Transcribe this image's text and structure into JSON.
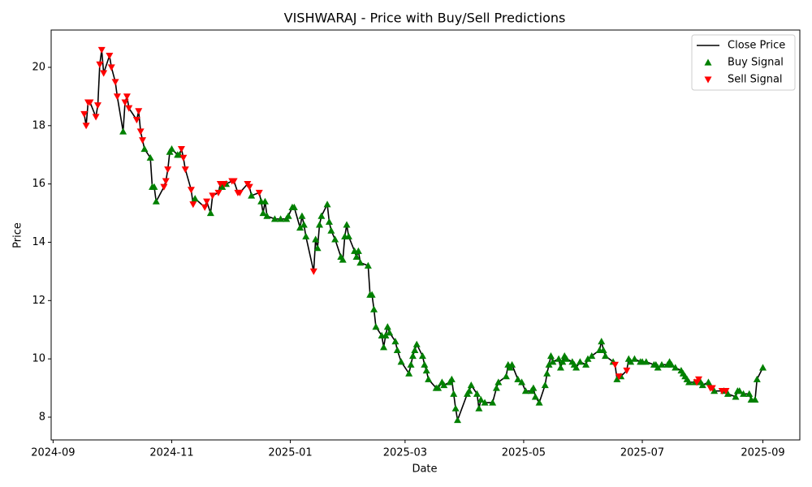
{
  "chart_data": {
    "type": "line",
    "title": "VISHWARAJ - Price with Buy/Sell Predictions",
    "x_label": "Date",
    "y_label": "Price",
    "x": [
      "2024-09-17",
      "2024-09-18",
      "2024-09-19",
      "2024-09-20",
      "2024-09-23",
      "2024-09-24",
      "2024-09-25",
      "2024-09-26",
      "2024-09-27",
      "2024-09-30",
      "2024-10-01",
      "2024-10-03",
      "2024-10-04",
      "2024-10-07",
      "2024-10-08",
      "2024-10-09",
      "2024-10-10",
      "2024-10-14",
      "2024-10-15",
      "2024-10-16",
      "2024-10-17",
      "2024-10-18",
      "2024-10-21",
      "2024-10-22",
      "2024-10-23",
      "2024-10-24",
      "2024-10-28",
      "2024-10-29",
      "2024-10-30",
      "2024-10-31",
      "2024-11-01",
      "2024-11-04",
      "2024-11-05",
      "2024-11-06",
      "2024-11-07",
      "2024-11-08",
      "2024-11-11",
      "2024-11-12",
      "2024-11-13",
      "2024-11-18",
      "2024-11-19",
      "2024-11-21",
      "2024-11-22",
      "2024-11-25",
      "2024-11-26",
      "2024-11-27",
      "2024-11-28",
      "2024-11-29",
      "2024-12-02",
      "2024-12-03",
      "2024-12-05",
      "2024-12-06",
      "2024-12-10",
      "2024-12-11",
      "2024-12-12",
      "2024-12-16",
      "2024-12-17",
      "2024-12-18",
      "2024-12-19",
      "2024-12-20",
      "2024-12-24",
      "2024-12-27",
      "2024-12-30",
      "2024-12-31",
      "2025-01-02",
      "2025-01-03",
      "2025-01-06",
      "2025-01-07",
      "2025-01-08",
      "2025-01-09",
      "2025-01-13",
      "2025-01-14",
      "2025-01-15",
      "2025-01-16",
      "2025-01-17",
      "2025-01-20",
      "2025-01-21",
      "2025-01-22",
      "2025-01-24",
      "2025-01-27",
      "2025-01-28",
      "2025-01-29",
      "2025-01-30",
      "2025-01-31",
      "2025-02-03",
      "2025-02-04",
      "2025-02-05",
      "2025-02-06",
      "2025-02-10",
      "2025-02-11",
      "2025-02-12",
      "2025-02-13",
      "2025-02-14",
      "2025-02-17",
      "2025-02-18",
      "2025-02-19",
      "2025-02-20",
      "2025-02-21",
      "2025-02-24",
      "2025-02-25",
      "2025-02-27",
      "2025-03-03",
      "2025-03-04",
      "2025-03-05",
      "2025-03-06",
      "2025-03-07",
      "2025-03-10",
      "2025-03-11",
      "2025-03-12",
      "2025-03-13",
      "2025-03-17",
      "2025-03-18",
      "2025-03-20",
      "2025-03-21",
      "2025-03-24",
      "2025-03-25",
      "2025-03-26",
      "2025-03-27",
      "2025-03-28",
      "2025-04-02",
      "2025-04-03",
      "2025-04-04",
      "2025-04-07",
      "2025-04-08",
      "2025-04-09",
      "2025-04-11",
      "2025-04-15",
      "2025-04-17",
      "2025-04-18",
      "2025-04-22",
      "2025-04-23",
      "2025-04-24",
      "2025-04-25",
      "2025-04-28",
      "2025-04-30",
      "2025-05-02",
      "2025-05-05",
      "2025-05-06",
      "2025-05-07",
      "2025-05-09",
      "2025-05-12",
      "2025-05-13",
      "2025-05-14",
      "2025-05-15",
      "2025-05-16",
      "2025-05-19",
      "2025-05-20",
      "2025-05-21",
      "2025-05-22",
      "2025-05-23",
      "2025-05-26",
      "2025-05-27",
      "2025-05-28",
      "2025-05-30",
      "2025-06-02",
      "2025-06-03",
      "2025-06-05",
      "2025-06-09",
      "2025-06-10",
      "2025-06-11",
      "2025-06-12",
      "2025-06-16",
      "2025-06-17",
      "2025-06-18",
      "2025-06-19",
      "2025-06-20",
      "2025-06-23",
      "2025-06-24",
      "2025-06-25",
      "2025-06-27",
      "2025-06-30",
      "2025-07-01",
      "2025-07-03",
      "2025-07-07",
      "2025-07-08",
      "2025-07-09",
      "2025-07-11",
      "2025-07-14",
      "2025-07-15",
      "2025-07-16",
      "2025-07-18",
      "2025-07-21",
      "2025-07-22",
      "2025-07-23",
      "2025-07-24",
      "2025-07-25",
      "2025-07-28",
      "2025-07-29",
      "2025-07-30",
      "2025-07-31",
      "2025-08-01",
      "2025-08-04",
      "2025-08-05",
      "2025-08-06",
      "2025-08-07",
      "2025-08-11",
      "2025-08-12",
      "2025-08-13",
      "2025-08-14",
      "2025-08-18",
      "2025-08-19",
      "2025-08-20",
      "2025-08-22",
      "2025-08-25",
      "2025-08-26",
      "2025-08-28",
      "2025-08-29",
      "2025-09-01"
    ],
    "series": [
      {
        "name": "Close Price",
        "color": "#000000",
        "values": [
          18.4,
          18.0,
          18.8,
          18.8,
          18.3,
          18.7,
          20.1,
          20.6,
          19.8,
          20.4,
          20.0,
          19.5,
          19.0,
          17.8,
          18.8,
          19.0,
          18.6,
          18.2,
          18.5,
          17.8,
          17.5,
          17.2,
          16.9,
          15.9,
          15.9,
          15.4,
          15.9,
          16.1,
          16.5,
          17.1,
          17.2,
          17.0,
          17.0,
          17.2,
          16.9,
          16.5,
          15.8,
          15.3,
          15.5,
          15.2,
          15.4,
          15.0,
          15.6,
          15.7,
          16.0,
          15.9,
          16.0,
          16.0,
          16.1,
          16.1,
          15.7,
          15.7,
          16.0,
          15.9,
          15.6,
          15.7,
          15.4,
          15.0,
          15.4,
          14.9,
          14.8,
          14.8,
          14.8,
          14.9,
          15.2,
          15.2,
          14.5,
          14.9,
          14.6,
          14.2,
          13.0,
          14.1,
          13.8,
          14.6,
          14.9,
          15.3,
          14.7,
          14.4,
          14.1,
          13.5,
          13.4,
          14.2,
          14.6,
          14.2,
          13.7,
          13.5,
          13.7,
          13.3,
          13.2,
          12.2,
          12.2,
          11.7,
          11.1,
          10.8,
          10.4,
          10.8,
          11.1,
          10.9,
          10.6,
          10.3,
          9.9,
          9.5,
          9.8,
          10.1,
          10.3,
          10.5,
          10.1,
          9.8,
          9.6,
          9.3,
          9.0,
          9.0,
          9.2,
          9.1,
          9.2,
          9.3,
          8.8,
          8.3,
          7.9,
          8.8,
          8.9,
          9.1,
          8.8,
          8.3,
          8.6,
          8.5,
          8.5,
          9.0,
          9.2,
          9.4,
          9.8,
          9.7,
          9.8,
          9.3,
          9.2,
          8.9,
          8.9,
          9.0,
          8.7,
          8.5,
          9.1,
          9.5,
          9.8,
          10.1,
          9.9,
          10.0,
          9.7,
          9.9,
          10.1,
          10.0,
          9.9,
          9.8,
          9.7,
          9.9,
          9.8,
          10.0,
          10.1,
          10.3,
          10.6,
          10.3,
          10.1,
          9.9,
          9.8,
          9.3,
          9.4,
          9.4,
          9.6,
          10.0,
          9.9,
          10.0,
          9.9,
          9.9,
          9.9,
          9.8,
          9.8,
          9.7,
          9.8,
          9.8,
          9.9,
          9.8,
          9.7,
          9.6,
          9.5,
          9.4,
          9.3,
          9.2,
          9.2,
          9.2,
          9.3,
          9.2,
          9.1,
          9.2,
          9.0,
          9.0,
          8.9,
          8.9,
          8.9,
          8.9,
          8.8,
          8.7,
          8.9,
          8.9,
          8.8,
          8.8,
          8.6,
          8.6,
          9.3,
          9.7
        ]
      },
      {
        "name": "Buy Signal",
        "color": "#008000",
        "marker": "^",
        "values": [
          null,
          null,
          null,
          null,
          null,
          null,
          null,
          null,
          null,
          null,
          null,
          null,
          null,
          17.8,
          null,
          null,
          null,
          null,
          null,
          null,
          null,
          17.2,
          16.9,
          15.9,
          15.9,
          15.4,
          null,
          null,
          null,
          17.1,
          17.2,
          17.0,
          17.0,
          null,
          null,
          null,
          null,
          null,
          15.5,
          null,
          null,
          15.0,
          null,
          null,
          null,
          15.9,
          null,
          16.0,
          null,
          null,
          null,
          null,
          null,
          null,
          15.6,
          null,
          15.4,
          15.0,
          15.4,
          14.9,
          14.8,
          14.8,
          14.8,
          14.9,
          15.2,
          15.2,
          14.5,
          14.9,
          14.6,
          14.2,
          null,
          14.1,
          13.8,
          14.6,
          14.9,
          15.3,
          14.7,
          14.4,
          14.1,
          13.5,
          13.4,
          14.2,
          14.6,
          14.2,
          13.7,
          13.5,
          13.7,
          13.3,
          13.2,
          12.2,
          12.2,
          11.7,
          11.1,
          10.8,
          10.4,
          10.8,
          11.1,
          10.9,
          10.6,
          10.3,
          9.9,
          9.5,
          9.8,
          10.1,
          10.3,
          10.5,
          10.1,
          9.8,
          9.6,
          9.3,
          9.0,
          9.0,
          9.2,
          9.1,
          9.2,
          9.3,
          8.8,
          8.3,
          7.9,
          8.8,
          8.9,
          9.1,
          8.8,
          8.3,
          8.6,
          8.5,
          8.5,
          9.0,
          9.2,
          9.4,
          9.8,
          9.7,
          9.8,
          9.3,
          9.2,
          8.9,
          8.9,
          9.0,
          8.7,
          8.5,
          9.1,
          9.5,
          9.8,
          10.1,
          9.9,
          10.0,
          9.7,
          9.9,
          10.1,
          10.0,
          9.9,
          9.8,
          9.7,
          9.9,
          9.8,
          10.0,
          10.1,
          10.3,
          10.6,
          10.3,
          10.1,
          9.9,
          null,
          9.3,
          null,
          9.4,
          null,
          10.0,
          9.9,
          10.0,
          9.9,
          9.9,
          9.9,
          9.8,
          9.8,
          9.7,
          9.8,
          9.8,
          9.9,
          9.8,
          9.7,
          9.6,
          9.5,
          9.4,
          9.3,
          9.2,
          9.2,
          null,
          null,
          9.2,
          9.1,
          9.2,
          null,
          null,
          8.9,
          null,
          8.9,
          null,
          8.8,
          8.7,
          8.9,
          8.9,
          8.8,
          8.8,
          8.6,
          8.6,
          9.3,
          9.7
        ]
      },
      {
        "name": "Sell Signal",
        "color": "#ff0000",
        "marker": "v",
        "values": [
          18.4,
          18.0,
          18.8,
          18.8,
          18.3,
          18.7,
          20.1,
          20.6,
          19.8,
          20.4,
          20.0,
          19.5,
          19.0,
          null,
          18.8,
          19.0,
          18.6,
          18.2,
          18.5,
          17.8,
          17.5,
          null,
          null,
          null,
          null,
          null,
          15.9,
          16.1,
          16.5,
          null,
          null,
          null,
          null,
          17.2,
          16.9,
          16.5,
          15.8,
          15.3,
          null,
          15.2,
          15.4,
          null,
          15.6,
          15.7,
          16.0,
          null,
          16.0,
          null,
          16.1,
          16.1,
          15.7,
          15.7,
          16.0,
          15.9,
          null,
          15.7,
          null,
          null,
          null,
          null,
          null,
          null,
          null,
          null,
          null,
          null,
          null,
          null,
          null,
          null,
          13.0,
          null,
          null,
          null,
          null,
          null,
          null,
          null,
          null,
          null,
          null,
          null,
          null,
          null,
          null,
          null,
          null,
          null,
          null,
          null,
          null,
          null,
          null,
          null,
          null,
          null,
          null,
          null,
          null,
          null,
          null,
          null,
          null,
          null,
          null,
          null,
          null,
          null,
          null,
          null,
          null,
          null,
          null,
          null,
          null,
          null,
          null,
          null,
          null,
          null,
          null,
          null,
          null,
          null,
          null,
          null,
          null,
          null,
          null,
          null,
          null,
          null,
          null,
          null,
          null,
          null,
          null,
          null,
          null,
          null,
          null,
          null,
          null,
          null,
          null,
          null,
          null,
          null,
          null,
          null,
          null,
          null,
          null,
          null,
          null,
          null,
          null,
          null,
          null,
          null,
          null,
          null,
          9.8,
          null,
          9.4,
          null,
          9.6,
          null,
          null,
          null,
          null,
          null,
          null,
          null,
          null,
          null,
          null,
          null,
          null,
          null,
          null,
          null,
          null,
          null,
          null,
          null,
          null,
          9.2,
          9.3,
          null,
          null,
          null,
          9.0,
          9.0,
          null,
          8.9,
          null,
          8.9,
          null,
          null,
          null,
          null,
          null,
          null,
          null,
          null,
          null,
          null
        ]
      }
    ],
    "xlim": [
      "2024-08-31",
      "2025-09-20"
    ],
    "xticks": [
      {
        "value": "2024-09-01",
        "label": "2024-09"
      },
      {
        "value": "2024-11-01",
        "label": "2024-11"
      },
      {
        "value": "2025-01-01",
        "label": "2025-01"
      },
      {
        "value": "2025-03-01",
        "label": "2025-03"
      },
      {
        "value": "2025-05-01",
        "label": "2025-05"
      },
      {
        "value": "2025-07-01",
        "label": "2025-07"
      },
      {
        "value": "2025-09-01",
        "label": "2025-09"
      }
    ],
    "ylim": [
      7.22,
      21.28
    ],
    "yticks": [
      8,
      10,
      12,
      14,
      16,
      18,
      20
    ],
    "grid": false,
    "legend": "upper right"
  }
}
